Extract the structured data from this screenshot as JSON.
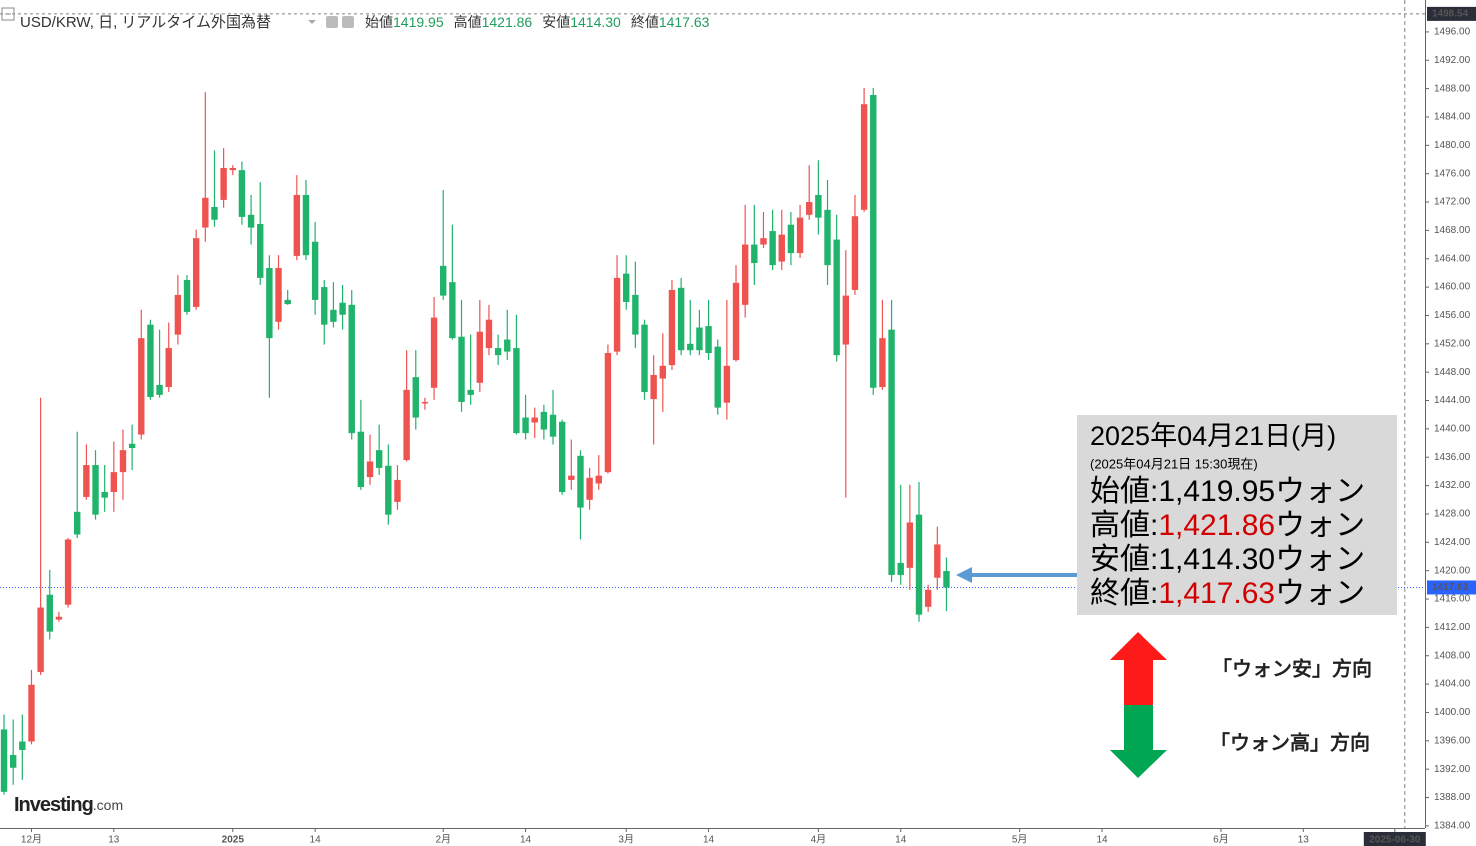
{
  "chart_data": {
    "type": "candlestick",
    "header": {
      "symbol": "USD/KRW, 日, リアルタイム外国為替",
      "ohlc": [
        {
          "name": "始値",
          "value": "1419.95"
        },
        {
          "name": "高値",
          "value": "1421.86"
        },
        {
          "name": "安値",
          "value": "1414.30"
        },
        {
          "name": "終値",
          "value": "1417.63"
        }
      ]
    },
    "up_color": "#ef5350",
    "down_color": "#1fb36b",
    "open": [
      1397.6,
      1394.0,
      1395.9,
      1395.9,
      1405.7,
      1416.6,
      1413.1,
      1415.2,
      1428.3,
      1430.4,
      1434.9,
      1431.1,
      1431.1,
      1433.9,
      1437.9,
      1439.2,
      1454.7,
      1446.2,
      1445.9,
      1453.3,
      1461.0,
      1457.2,
      1468.4,
      1471.3,
      1472.3,
      1476.5,
      1476.5,
      1470.2,
      1468.9,
      1462.7,
      1455.1,
      1458.2,
      1464.4,
      1473.0,
      1466.4,
      1460.0,
      1456.8,
      1457.8,
      1457.5,
      1439.6,
      1433.2,
      1437.0,
      1434.8,
      1429.7,
      1435.6,
      1447.3,
      1443.7,
      1445.8,
      1463.0,
      1460.7,
      1453.0,
      1445.5,
      1446.5,
      1451.4,
      1451.4,
      1452.6,
      1451.4,
      1441.6,
      1440.9,
      1442.4,
      1442.0,
      1441.0,
      1432.8,
      1436.2,
      1430.0,
      1432.3,
      1433.9,
      1450.9,
      1461.9,
      1458.9,
      1454.7,
      1444.2,
      1447.1,
      1449.0,
      1459.9,
      1452.0,
      1454.3,
      1454.5,
      1451.6,
      1443.7,
      1449.7,
      1457.5,
      1466.0,
      1466.0,
      1467.9,
      1463.6,
      1468.8,
      1464.8,
      1470.2,
      1473.0,
      1470.9,
      1466.7,
      1451.9,
      1459.6,
      1470.9,
      1487.1,
      1445.9,
      1454.0,
      1421.1,
      1420.4,
      1427.9,
      1414.9,
      1419.0,
      1419.95
    ],
    "high": [
      1399.7,
      1399.0,
      1399.7,
      1406.0,
      1444.4,
      1420.1,
      1414.2,
      1424.6,
      1439.6,
      1437.8,
      1437.0,
      1434.9,
      1438.2,
      1439.9,
      1440.6,
      1456.8,
      1455.4,
      1454.0,
      1455.0,
      1461.7,
      1461.7,
      1468.1,
      1487.5,
      1479.3,
      1479.6,
      1477.2,
      1477.7,
      1473.0,
      1474.8,
      1464.5,
      1464.5,
      1459.6,
      1475.8,
      1475.1,
      1469.2,
      1461.0,
      1460.7,
      1460.3,
      1459.6,
      1444.1,
      1439.2,
      1440.6,
      1437.8,
      1434.9,
      1451.1,
      1451.1,
      1444.4,
      1458.6,
      1473.7,
      1468.8,
      1458.2,
      1453.3,
      1458.2,
      1457.5,
      1453.3,
      1456.8,
      1456.1,
      1444.8,
      1443.0,
      1443.4,
      1445.5,
      1441.3,
      1438.5,
      1437.0,
      1434.5,
      1436.3,
      1451.9,
      1464.5,
      1464.5,
      1463.6,
      1455.4,
      1450.4,
      1453.5,
      1461.0,
      1461.3,
      1458.2,
      1456.8,
      1458.2,
      1452.6,
      1458.2,
      1463.1,
      1471.6,
      1471.6,
      1470.6,
      1470.9,
      1470.9,
      1470.6,
      1471.6,
      1477.2,
      1477.9,
      1475.1,
      1470.2,
      1465.2,
      1473.0,
      1488.1,
      1488.1,
      1458.2,
      1458.2,
      1432.1,
      1432.1,
      1432.5,
      1418.0,
      1426.2,
      1421.86
    ],
    "low": [
      1388.4,
      1389.8,
      1390.5,
      1395.5,
      1405.3,
      1410.3,
      1412.8,
      1414.8,
      1424.6,
      1430.0,
      1427.2,
      1428.3,
      1428.3,
      1430.0,
      1434.2,
      1438.5,
      1444.1,
      1444.4,
      1445.2,
      1451.9,
      1456.1,
      1456.8,
      1466.4,
      1468.5,
      1471.2,
      1475.8,
      1468.8,
      1466.0,
      1460.3,
      1444.4,
      1454.0,
      1457.5,
      1463.8,
      1463.8,
      1456.1,
      1451.9,
      1454.3,
      1454.0,
      1438.5,
      1431.4,
      1432.1,
      1433.5,
      1426.5,
      1428.6,
      1435.4,
      1439.9,
      1442.7,
      1444.1,
      1458.2,
      1452.6,
      1442.4,
      1443.4,
      1445.2,
      1450.4,
      1449.0,
      1449.7,
      1439.2,
      1438.5,
      1438.7,
      1438.5,
      1437.8,
      1430.7,
      1431.4,
      1424.4,
      1428.6,
      1431.4,
      1433.7,
      1450.4,
      1456.8,
      1451.4,
      1444.1,
      1437.8,
      1442.4,
      1448.3,
      1450.4,
      1450.4,
      1450.4,
      1449.7,
      1442.0,
      1441.3,
      1449.5,
      1455.7,
      1460.3,
      1465.5,
      1462.4,
      1462.4,
      1463.1,
      1464.1,
      1469.5,
      1467.4,
      1460.3,
      1449.5,
      1430.3,
      1458.9,
      1470.6,
      1444.8,
      1445.5,
      1418.4,
      1418.0,
      1417.3,
      1412.8,
      1414.2,
      1417.3,
      1414.3
    ],
    "close": [
      1388.8,
      1392.2,
      1394.7,
      1403.9,
      1414.8,
      1411.4,
      1413.5,
      1424.4,
      1425.1,
      1434.9,
      1427.9,
      1430.3,
      1433.9,
      1437.0,
      1437.3,
      1452.8,
      1444.5,
      1444.8,
      1451.4,
      1458.9,
      1456.5,
      1466.9,
      1472.6,
      1469.5,
      1476.8,
      1476.8,
      1469.9,
      1468.4,
      1461.3,
      1452.8,
      1462.7,
      1457.6,
      1473.0,
      1464.5,
      1458.2,
      1454.7,
      1455.1,
      1456.1,
      1439.4,
      1431.8,
      1435.4,
      1434.5,
      1427.9,
      1432.8,
      1445.5,
      1441.6,
      1443.8,
      1455.7,
      1458.8,
      1452.8,
      1443.8,
      1444.8,
      1453.7,
      1455.4,
      1450.4,
      1450.9,
      1439.4,
      1439.4,
      1441.6,
      1439.9,
      1438.9,
      1431.1,
      1433.4,
      1428.9,
      1433.1,
      1433.4,
      1450.7,
      1461.3,
      1457.9,
      1453.3,
      1445.2,
      1447.6,
      1448.9,
      1459.6,
      1451.1,
      1451.1,
      1451.1,
      1450.7,
      1443.0,
      1448.9,
      1460.6,
      1466.0,
      1463.4,
      1466.9,
      1463.1,
      1467.4,
      1464.8,
      1469.8,
      1472.0,
      1469.8,
      1463.1,
      1450.4,
      1458.8,
      1470.0,
      1485.8,
      1445.8,
      1452.8,
      1419.4,
      1419.4,
      1426.8,
      1413.8,
      1417.3,
      1423.7,
      1417.63
    ],
    "xlim": [
      -0.44,
      155.3
    ],
    "xticks": [
      {
        "value": 3,
        "label": "12月"
      },
      {
        "value": 12,
        "label": "13"
      },
      {
        "value": 25,
        "label": "2025"
      },
      {
        "value": 34,
        "label": "14"
      },
      {
        "value": 48,
        "label": "2月"
      },
      {
        "value": 57,
        "label": "14"
      },
      {
        "value": 68,
        "label": "3月"
      },
      {
        "value": 77,
        "label": "14"
      },
      {
        "value": 89,
        "label": "4月"
      },
      {
        "value": 98,
        "label": "14"
      },
      {
        "value": 111,
        "label": "5月"
      },
      {
        "value": 120,
        "label": "14"
      },
      {
        "value": 133,
        "label": "6月"
      },
      {
        "value": 142,
        "label": "13"
      },
      {
        "value": 152,
        "label": "2025-06-30"
      }
    ],
    "ylim": [
      1383.7,
      1500.5
    ],
    "yticks": [
      {
        "value": 1384,
        "label": "1384.00"
      },
      {
        "value": 1388,
        "label": "1388.00"
      },
      {
        "value": 1392,
        "label": "1392.00"
      },
      {
        "value": 1396,
        "label": "1396.00"
      },
      {
        "value": 1400,
        "label": "1400.00"
      },
      {
        "value": 1404,
        "label": "1404.00"
      },
      {
        "value": 1408,
        "label": "1408.00"
      },
      {
        "value": 1412,
        "label": "1412.00"
      },
      {
        "value": 1416,
        "label": "1416.00"
      },
      {
        "value": 1420,
        "label": "1420.00"
      },
      {
        "value": 1424,
        "label": "1424.00"
      },
      {
        "value": 1428,
        "label": "1428.00"
      },
      {
        "value": 1432,
        "label": "1432.00"
      },
      {
        "value": 1436,
        "label": "1436.00"
      },
      {
        "value": 1440,
        "label": "1440.00"
      },
      {
        "value": 1444,
        "label": "1444.00"
      },
      {
        "value": 1448,
        "label": "1448.00"
      },
      {
        "value": 1452,
        "label": "1452.00"
      },
      {
        "value": 1456,
        "label": "1456.00"
      },
      {
        "value": 1460,
        "label": "1460.00"
      },
      {
        "value": 1464,
        "label": "1464.00"
      },
      {
        "value": 1468,
        "label": "1468.00"
      },
      {
        "value": 1472,
        "label": "1472.00"
      },
      {
        "value": 1476,
        "label": "1476.00"
      },
      {
        "value": 1480,
        "label": "1480.00"
      },
      {
        "value": 1484,
        "label": "1484.00"
      },
      {
        "value": 1488,
        "label": "1488.00"
      },
      {
        "value": 1492,
        "label": "1492.00"
      },
      {
        "value": 1496,
        "label": "1496.00"
      }
    ],
    "grid": false,
    "price_markers": [
      {
        "value": 1498.54,
        "color": "#2a2e39"
      },
      {
        "value": 1417.63,
        "color": "#2962ff"
      }
    ],
    "annotation": {
      "date": "2025年04月21日(月)",
      "note": "(2025年04月21日 15:30現在)",
      "rows": [
        {
          "label": "始値:",
          "value": "1,419.95",
          "unit": "ウォン",
          "color": "#000000"
        },
        {
          "label": "高値:",
          "value": "1,421.86",
          "unit": "ウォン",
          "color": "#d00000"
        },
        {
          "label": "安値:",
          "value": "1,414.30",
          "unit": "ウォン",
          "color": "#000000"
        },
        {
          "label": "終値:",
          "value": "1,417.63",
          "unit": "ウォン",
          "color": "#d00000"
        }
      ]
    },
    "directions": [
      {
        "text": "「ウォン安」方向",
        "color": "#ff1a1a"
      },
      {
        "text": "「ウォン高」方向",
        "color": "#00a651"
      }
    ],
    "logo": {
      "brand": "Investing",
      "suffix": ".com"
    }
  }
}
